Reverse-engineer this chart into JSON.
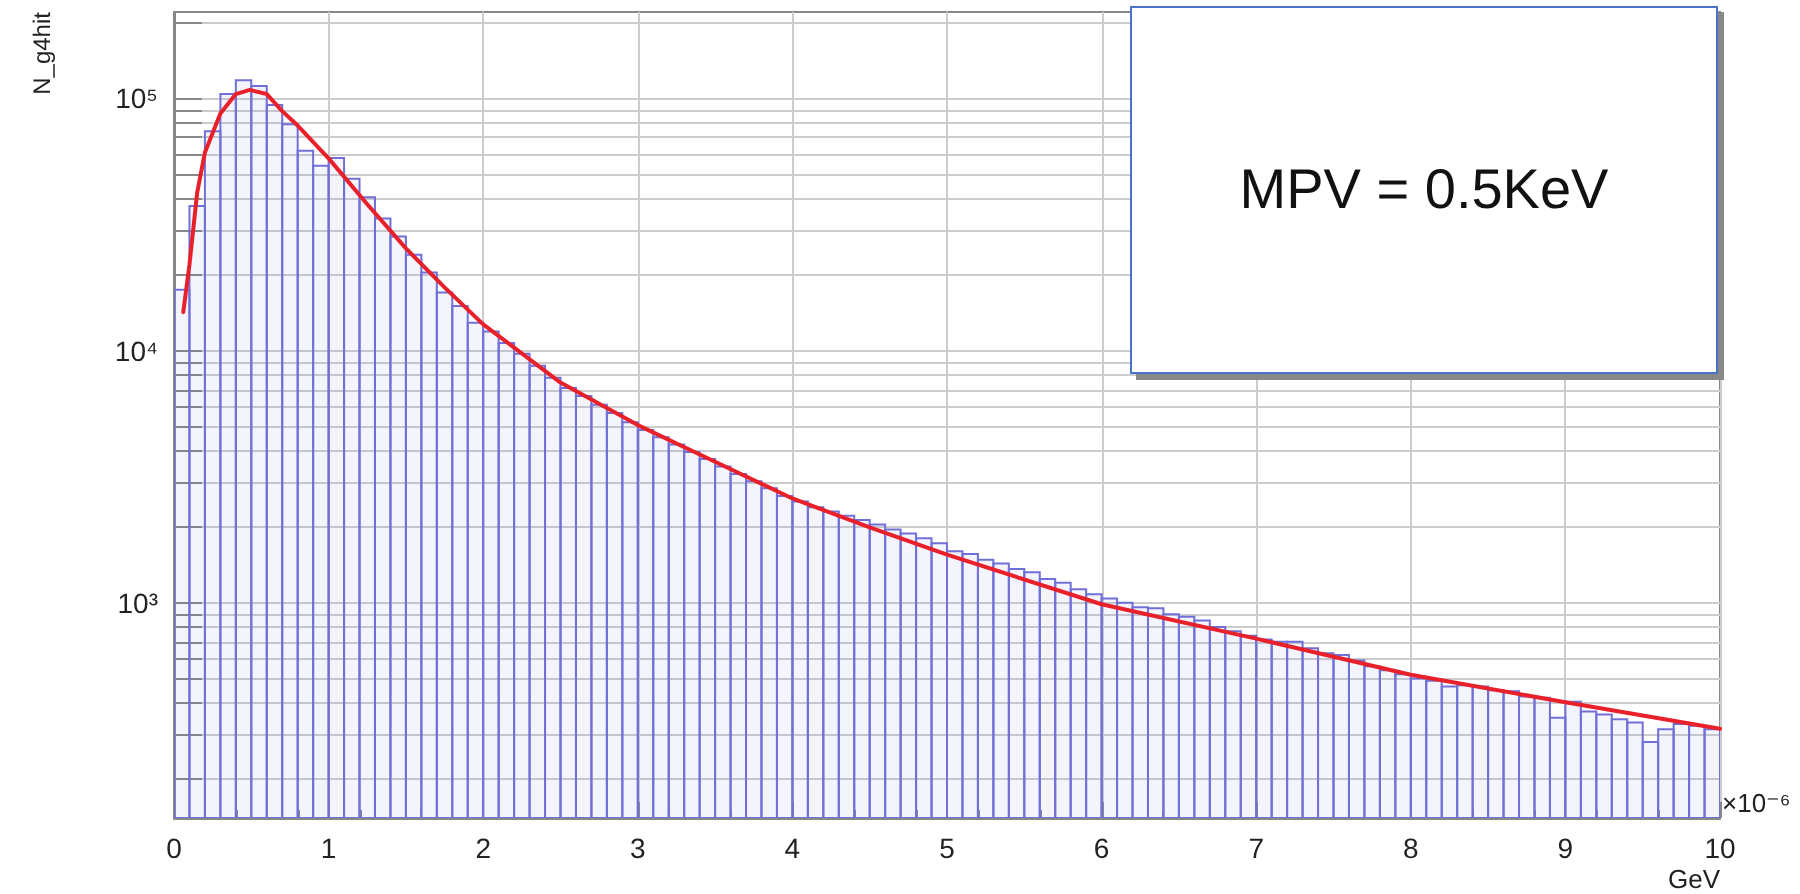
{
  "chart_data": {
    "type": "histogram",
    "ylabel": "N_g4hit",
    "xlabel": "GeV",
    "annotations": [
      "MPV = 0.5KeV",
      "×10⁻⁶"
    ],
    "log": "y",
    "grid": true,
    "marker": "none",
    "xlim": [
      0,
      10
    ],
    "xticks": [
      0,
      1,
      2,
      3,
      4,
      5,
      6,
      7,
      8,
      9,
      10
    ],
    "ylim": [
      140,
      220000
    ],
    "yticks": [
      {
        "value": 200,
        "label": null
      },
      {
        "value": 300,
        "label": null
      },
      {
        "value": 400,
        "label": null
      },
      {
        "value": 500,
        "label": null
      },
      {
        "value": 600,
        "label": null
      },
      {
        "value": 700,
        "label": null
      },
      {
        "value": 800,
        "label": null
      },
      {
        "value": 900,
        "label": null
      },
      {
        "value": 1000,
        "label": "10³"
      },
      {
        "value": 2000,
        "label": null
      },
      {
        "value": 3000,
        "label": null
      },
      {
        "value": 4000,
        "label": null
      },
      {
        "value": 5000,
        "label": null
      },
      {
        "value": 6000,
        "label": null
      },
      {
        "value": 7000,
        "label": null
      },
      {
        "value": 8000,
        "label": null
      },
      {
        "value": 9000,
        "label": null
      },
      {
        "value": 10000,
        "label": "10⁴"
      },
      {
        "value": 20000,
        "label": null
      },
      {
        "value": 30000,
        "label": null
      },
      {
        "value": 40000,
        "label": null
      },
      {
        "value": 50000,
        "label": null
      },
      {
        "value": 60000,
        "label": null
      },
      {
        "value": 70000,
        "label": null
      },
      {
        "value": 80000,
        "label": null
      },
      {
        "value": 90000,
        "label": null
      },
      {
        "value": 100000,
        "label": "10⁵"
      },
      {
        "value": 200000,
        "label": null
      }
    ],
    "bins": [
      0,
      0.1,
      0.2,
      0.3,
      0.4,
      0.5,
      0.6,
      0.7,
      0.8,
      0.9,
      1,
      1.1,
      1.2,
      1.3,
      1.4,
      1.5,
      1.6,
      1.7,
      1.8,
      1.9,
      2,
      2.1,
      2.2,
      2.3,
      2.4,
      2.5,
      2.6,
      2.7,
      2.8,
      2.9,
      3,
      3.1,
      3.2,
      3.3,
      3.4,
      3.5,
      3.6,
      3.7,
      3.8,
      3.9,
      4,
      4.1,
      4.2,
      4.3,
      4.4,
      4.5,
      4.6,
      4.7,
      4.8,
      4.9,
      5,
      5.1,
      5.2,
      5.3,
      5.4,
      5.5,
      5.6,
      5.7,
      5.8,
      5.9,
      6,
      6.1,
      6.2,
      6.3,
      6.4,
      6.5,
      6.6,
      6.7,
      6.8,
      6.9,
      7,
      7.1,
      7.2,
      7.3,
      7.4,
      7.5,
      7.6,
      7.7,
      7.8,
      7.9,
      8,
      8.1,
      8.2,
      8.3,
      8.4,
      8.5,
      8.6,
      8.7,
      8.8,
      8.9,
      9,
      9.1,
      9.2,
      9.3,
      9.4,
      9.5,
      9.6,
      9.7,
      9.8,
      9.9,
      10
    ],
    "series": [
      {
        "color": "#7070d8",
        "values": [
          17400,
          37400,
          74000,
          104000,
          118000,
          112000,
          94000,
          79000,
          62000,
          54000,
          58000,
          48000,
          40500,
          33400,
          28300,
          24000,
          20400,
          17000,
          15000,
          12900,
          11900,
          10700,
          9700,
          8700,
          7800,
          7100,
          6600,
          6100,
          5650,
          5200,
          4840,
          4530,
          4240,
          3960,
          3710,
          3470,
          3240,
          3030,
          2840,
          2650,
          2520,
          2390,
          2300,
          2210,
          2130,
          2040,
          1950,
          1880,
          1800,
          1720,
          1600,
          1560,
          1480,
          1430,
          1360,
          1320,
          1240,
          1200,
          1130,
          1080,
          1040,
          1000,
          960,
          950,
          900,
          880,
          850,
          800,
          770,
          740,
          715,
          700,
          700,
          660,
          630,
          620,
          590,
          560,
          540,
          520,
          500,
          490,
          465,
          470,
          465,
          450,
          445,
          425,
          420,
          350,
          405,
          370,
          360,
          345,
          335,
          280,
          315,
          330,
          325,
          315
        ]
      },
      {
        "type": "line",
        "color": "#e8202a",
        "x": [
          0.06,
          0.1,
          0.15,
          0.2,
          0.3,
          0.4,
          0.49,
          0.6,
          0.7,
          0.8,
          1,
          1.25,
          1.5,
          1.75,
          2,
          2.5,
          3,
          3.5,
          4,
          4.5,
          5,
          6,
          7,
          8,
          9,
          10
        ],
        "values": [
          14200,
          21900,
          42300,
          61000,
          87000,
          104000,
          108000,
          104000,
          89000,
          78000,
          57800,
          38000,
          25400,
          17800,
          12700,
          7460,
          5060,
          3620,
          2590,
          1990,
          1550,
          986,
          720,
          518,
          403,
          316
        ]
      }
    ]
  }
}
